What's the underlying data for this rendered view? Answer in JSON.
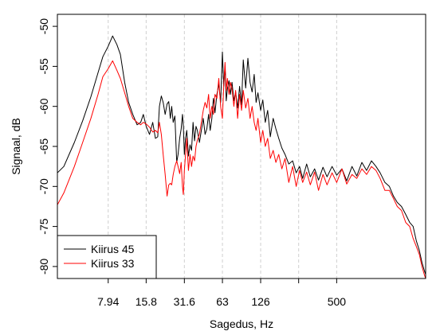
{
  "chart_data": {
    "type": "line",
    "title": "",
    "xlabel": "Sagedus, Hz",
    "ylabel": "Signaal, dB",
    "x_scale": "log",
    "xlim": [
      3.16,
      2510
    ],
    "ylim": [
      -81.5,
      -48.5
    ],
    "grid": {
      "x": "dashed-vertical",
      "y": false
    },
    "x_ticks": [
      {
        "value": 7.94,
        "label": "7.94"
      },
      {
        "value": 15.8,
        "label": "15.8"
      },
      {
        "value": 31.6,
        "label": "31.6"
      },
      {
        "value": 63,
        "label": "63"
      },
      {
        "value": 126,
        "label": "126"
      },
      {
        "value": 251,
        "label": ""
      },
      {
        "value": 500,
        "label": "500"
      }
    ],
    "y_ticks": [
      -50,
      -55,
      -60,
      -65,
      -70,
      -75,
      -80
    ],
    "y_tick_labels": [
      "-50",
      "-55",
      "-60",
      "-65",
      "-70",
      "-75",
      "-80"
    ],
    "legend": {
      "position": "bottom-left"
    },
    "series": [
      {
        "name": "Kiirus 45",
        "color": "#000000",
        "x": [
          3.16,
          3.55,
          4.3,
          5.0,
          5.8,
          6.6,
          7.2,
          7.94,
          8.6,
          9.3,
          9.9,
          10.7,
          11.5,
          12.4,
          13.4,
          14.3,
          15.0,
          15.8,
          16.8,
          17.8,
          18.7,
          19.5,
          20.1,
          20.8,
          21.5,
          22.3,
          23.1,
          23.8,
          24.5,
          25.1,
          25.8,
          26.6,
          27.5,
          28.2,
          29.0,
          29.8,
          30.5,
          31.0,
          31.6,
          32.3,
          33.0,
          34.0,
          35.0,
          36.0,
          37.0,
          38.0,
          39.0,
          40.0,
          41.5,
          43.0,
          44.5,
          46.0,
          47.5,
          49.0,
          50.5,
          52.0,
          53.5,
          55.0,
          57.0,
          59.0,
          61.0,
          63.0,
          64.5,
          66.0,
          67.5,
          69.0,
          71.0,
          73.0,
          75.0,
          77.5,
          80.0,
          83.0,
          86.0,
          89.0,
          92.0,
          96.0,
          100.0,
          104.0,
          108.0,
          112.0,
          116.0,
          120.0,
          126.0,
          131.0,
          137.0,
          143.0,
          150.0,
          158.0,
          166.0,
          175.0,
          185.0,
          196.0,
          210.0,
          225.0,
          240.0,
          255.0,
          270.0,
          290.0,
          310.0,
          335.0,
          360.0,
          390.0,
          420.0,
          460.0,
          500.0,
          550.0,
          600.0,
          660.0,
          720.0,
          790.0,
          860.0,
          940.0,
          1020.0,
          1100.0,
          1200.0,
          1300.0,
          1400.0,
          1500.0,
          1620.0,
          1750.0,
          1880.0,
          2000.0,
          2120.0,
          2240.0,
          2350.0,
          2450.0,
          2510.0
        ],
        "y": [
          -68.3,
          -67.5,
          -64.5,
          -61.8,
          -58.8,
          -55.8,
          -53.8,
          -52.5,
          -51.2,
          -52.3,
          -53.5,
          -57.0,
          -59.5,
          -61.0,
          -62.3,
          -62.0,
          -61.0,
          -62.5,
          -63.5,
          -62.0,
          -64.0,
          -63.8,
          -60.0,
          -58.7,
          -59.5,
          -61.0,
          -59.7,
          -59.4,
          -61.5,
          -60.0,
          -62.0,
          -61.2,
          -67.0,
          -66.0,
          -64.0,
          -62.8,
          -61.0,
          -62.4,
          -66.0,
          -64.0,
          -63.0,
          -66.2,
          -64.8,
          -65.5,
          -62.0,
          -64.3,
          -62.5,
          -63.0,
          -64.5,
          -63.0,
          -61.5,
          -63.5,
          -62.8,
          -61.0,
          -63.0,
          -61.5,
          -59.0,
          -60.8,
          -58.5,
          -57.2,
          -59.5,
          -53.2,
          -57.5,
          -55.0,
          -59.3,
          -57.8,
          -56.8,
          -58.5,
          -57.0,
          -59.3,
          -58.2,
          -60.2,
          -57.5,
          -59.8,
          -54.2,
          -57.7,
          -54.0,
          -57.0,
          -58.2,
          -56.0,
          -59.5,
          -58.3,
          -60.5,
          -59.2,
          -62.0,
          -60.5,
          -63.8,
          -61.5,
          -62.8,
          -64.0,
          -65.2,
          -66.0,
          -67.2,
          -66.8,
          -68.3,
          -67.5,
          -69.0,
          -67.2,
          -68.8,
          -67.8,
          -69.2,
          -67.6,
          -68.8,
          -67.5,
          -68.6,
          -67.8,
          -69.3,
          -67.5,
          -68.7,
          -67.0,
          -68.0,
          -66.8,
          -67.5,
          -68.3,
          -69.5,
          -70.0,
          -71.2,
          -72.0,
          -72.5,
          -73.5,
          -74.5,
          -75.0,
          -76.8,
          -78.0,
          -79.5,
          -80.5,
          -81.0
        ]
      },
      {
        "name": "Kiirus 33",
        "color": "#ff0000",
        "x": [
          3.16,
          3.55,
          4.3,
          5.0,
          5.8,
          6.6,
          7.2,
          7.94,
          8.6,
          9.3,
          9.9,
          10.7,
          11.5,
          12.4,
          13.4,
          14.3,
          15.0,
          15.8,
          16.8,
          17.8,
          18.7,
          19.5,
          20.1,
          20.8,
          21.5,
          22.3,
          23.1,
          23.8,
          24.5,
          25.1,
          25.8,
          26.6,
          27.5,
          28.2,
          29.0,
          29.8,
          30.5,
          31.0,
          31.6,
          32.3,
          33.0,
          34.0,
          35.0,
          36.0,
          37.0,
          38.0,
          39.0,
          40.0,
          41.5,
          43.0,
          44.5,
          46.0,
          47.5,
          49.0,
          50.5,
          52.0,
          53.5,
          55.0,
          57.0,
          59.0,
          61.0,
          63.0,
          64.5,
          66.0,
          67.5,
          69.0,
          71.0,
          73.0,
          75.0,
          77.5,
          80.0,
          83.0,
          86.0,
          89.0,
          92.0,
          96.0,
          100.0,
          104.0,
          108.0,
          112.0,
          116.0,
          120.0,
          126.0,
          131.0,
          137.0,
          143.0,
          150.0,
          158.0,
          166.0,
          175.0,
          185.0,
          196.0,
          210.0,
          225.0,
          240.0,
          255.0,
          270.0,
          290.0,
          310.0,
          335.0,
          360.0,
          390.0,
          420.0,
          460.0,
          500.0,
          550.0,
          600.0,
          660.0,
          720.0,
          790.0,
          860.0,
          940.0,
          1020.0,
          1100.0,
          1200.0,
          1300.0,
          1400.0,
          1500.0,
          1620.0,
          1750.0,
          1880.0,
          2000.0,
          2120.0,
          2240.0,
          2350.0,
          2450.0,
          2510.0
        ],
        "y": [
          -72.3,
          -70.8,
          -67.5,
          -64.5,
          -61.5,
          -58.5,
          -56.3,
          -55.3,
          -54.3,
          -55.5,
          -56.5,
          -58.3,
          -60.0,
          -61.5,
          -62.0,
          -62.3,
          -62.0,
          -62.2,
          -62.6,
          -63.2,
          -63.0,
          -63.3,
          -62.0,
          -63.5,
          -66.0,
          -68.5,
          -71.2,
          -69.8,
          -69.6,
          -69.8,
          -68.5,
          -67.5,
          -66.8,
          -67.5,
          -68.4,
          -67.0,
          -70.0,
          -71.0,
          -68.0,
          -66.0,
          -64.0,
          -68.0,
          -66.0,
          -67.5,
          -66.2,
          -66.8,
          -65.0,
          -64.2,
          -63.5,
          -62.0,
          -60.5,
          -59.5,
          -60.2,
          -58.5,
          -61.5,
          -60.0,
          -61.0,
          -58.5,
          -59.0,
          -56.5,
          -60.0,
          -61.5,
          -57.5,
          -54.5,
          -58.0,
          -56.5,
          -58.5,
          -57.0,
          -57.8,
          -60.0,
          -58.0,
          -61.5,
          -58.5,
          -60.5,
          -58.0,
          -60.2,
          -59.0,
          -61.5,
          -60.0,
          -62.0,
          -63.0,
          -61.5,
          -64.5,
          -63.0,
          -65.0,
          -64.0,
          -66.5,
          -65.5,
          -67.0,
          -66.0,
          -67.8,
          -66.5,
          -69.5,
          -67.5,
          -70.0,
          -68.0,
          -69.5,
          -68.2,
          -69.8,
          -68.2,
          -70.5,
          -68.5,
          -69.8,
          -68.3,
          -69.5,
          -67.8,
          -69.7,
          -68.5,
          -69.0,
          -67.8,
          -68.5,
          -67.5,
          -68.0,
          -69.0,
          -70.5,
          -70.5,
          -71.5,
          -72.5,
          -73.0,
          -74.5,
          -75.0,
          -76.5,
          -77.5,
          -78.5,
          -80.0,
          -81.0,
          -81.5
        ]
      }
    ]
  }
}
